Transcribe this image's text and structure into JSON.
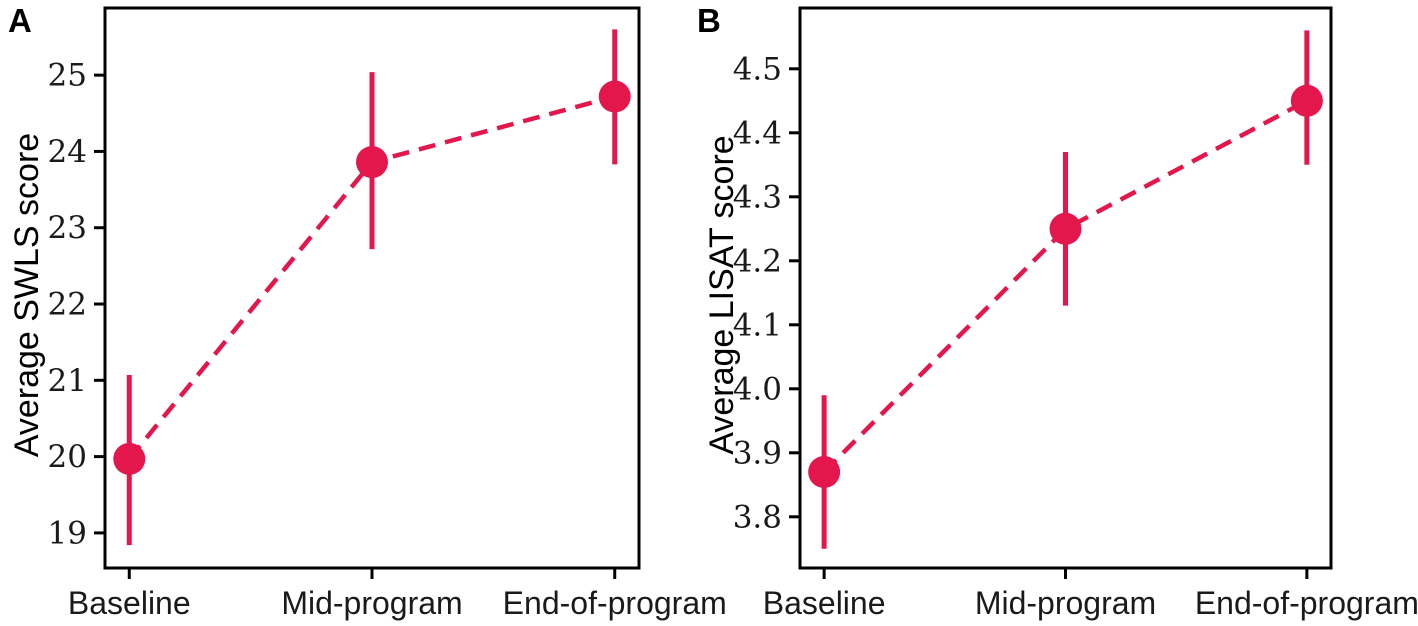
{
  "figure": {
    "background": "#ffffff",
    "accent_color": "#E4174D",
    "axis_color": "#000000",
    "text_color": "#1a1a1a"
  },
  "chart_data": [
    {
      "type": "line",
      "panel_label": "A",
      "ylabel": "Average SWLS score",
      "xlabel": "",
      "categories": [
        "Baseline",
        "Mid-program",
        "End-of-program"
      ],
      "series": [
        {
          "name": "Average SWLS score",
          "values": [
            19.97,
            23.86,
            24.72
          ],
          "err_low": [
            18.84,
            22.72,
            23.83
          ],
          "err_high": [
            21.07,
            25.04,
            25.6
          ]
        }
      ],
      "ylim": [
        18.54,
        25.88
      ],
      "yticks": [
        19,
        20,
        21,
        22,
        23,
        24,
        25
      ],
      "ytick_labels": [
        "19",
        "20",
        "21",
        "22",
        "23",
        "24",
        "25"
      ],
      "grid": false,
      "legend": null,
      "line_style": "dashed",
      "marker": "circle",
      "color": "#E4174D"
    },
    {
      "type": "line",
      "panel_label": "B",
      "ylabel": "Average LISAT score",
      "xlabel": "",
      "categories": [
        "Baseline",
        "Mid-program",
        "End-of-program"
      ],
      "series": [
        {
          "name": "Average LISAT score",
          "values": [
            3.87,
            4.25,
            4.45
          ],
          "err_low": [
            3.75,
            4.13,
            4.35
          ],
          "err_high": [
            3.99,
            4.37,
            4.56
          ]
        }
      ],
      "ylim": [
        3.72,
        4.595
      ],
      "yticks": [
        3.8,
        3.9,
        4.0,
        4.1,
        4.2,
        4.3,
        4.4,
        4.5
      ],
      "ytick_labels": [
        "3.8",
        "3.9",
        "4.0",
        "4.1",
        "4.2",
        "4.3",
        "4.4",
        "4.5"
      ],
      "grid": false,
      "legend": null,
      "line_style": "dashed",
      "marker": "circle",
      "color": "#E4174D"
    }
  ]
}
